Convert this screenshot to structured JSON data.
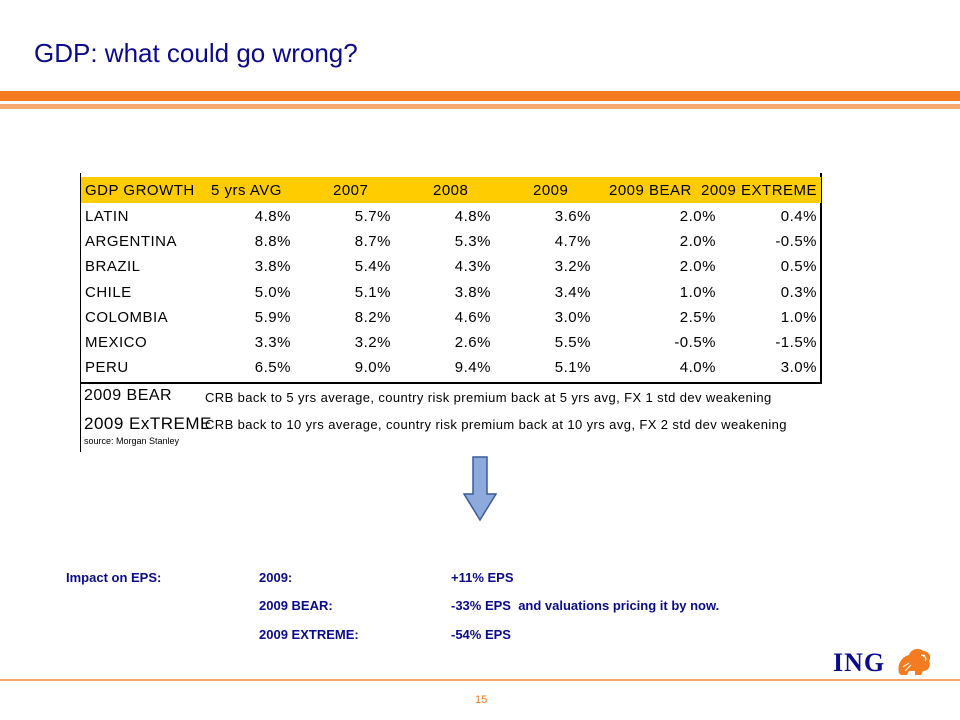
{
  "title": "GDP: what could go wrong?",
  "table": {
    "headers": [
      "GDP GROWTH",
      "5 yrs AVG",
      "2007",
      "2008",
      "2009",
      "2009 BEAR",
      "2009 EXTREME"
    ],
    "rows": [
      [
        "LATIN",
        "4.8%",
        "5.7%",
        "4.8%",
        "3.6%",
        "2.0%",
        "0.4%"
      ],
      [
        "ARGENTINA",
        "8.8%",
        "8.7%",
        "5.3%",
        "4.7%",
        "2.0%",
        "-0.5%"
      ],
      [
        "BRAZIL",
        "3.8%",
        "5.4%",
        "4.3%",
        "3.2%",
        "2.0%",
        "0.5%"
      ],
      [
        "CHILE",
        "5.0%",
        "5.1%",
        "3.8%",
        "3.4%",
        "1.0%",
        "0.3%"
      ],
      [
        "COLOMBIA",
        "5.9%",
        "8.2%",
        "4.6%",
        "3.0%",
        "2.5%",
        "1.0%"
      ],
      [
        "MEXICO",
        "3.3%",
        "3.2%",
        "2.6%",
        "5.5%",
        "-0.5%",
        "-1.5%"
      ],
      [
        "PERU",
        "6.5%",
        "9.0%",
        "9.4%",
        "5.1%",
        "4.0%",
        "3.0%"
      ]
    ],
    "header_color": "#ffcc00"
  },
  "notes": {
    "bear_label": "2009 BEAR",
    "bear_text": "CRB back to 5 yrs average, country risk premium back at 5 yrs avg, FX 1 std dev weakening",
    "extreme_label": "2009 ExTREME",
    "extreme_text": "CRB back to 10 yrs average, country risk premium back at 10 yrs avg, FX 2 std dev weakening",
    "source": "source: Morgan Stanley"
  },
  "impact": {
    "label": "Impact on EPS:",
    "items": [
      {
        "scenario": "2009:",
        "value": "+11% EPS"
      },
      {
        "scenario": "2009 BEAR:",
        "value": "-33% EPS  and valuations pricing it by now."
      },
      {
        "scenario": "2009 EXTREME:",
        "value": "-54% EPS"
      }
    ]
  },
  "footer": {
    "page_number": "15",
    "logo_text": "ING",
    "logo_icon": "lion-icon"
  },
  "colors": {
    "accent_orange": "#f47b20",
    "title_blue": "#0a0a8c",
    "arrow_fill": "#8ea9db"
  }
}
